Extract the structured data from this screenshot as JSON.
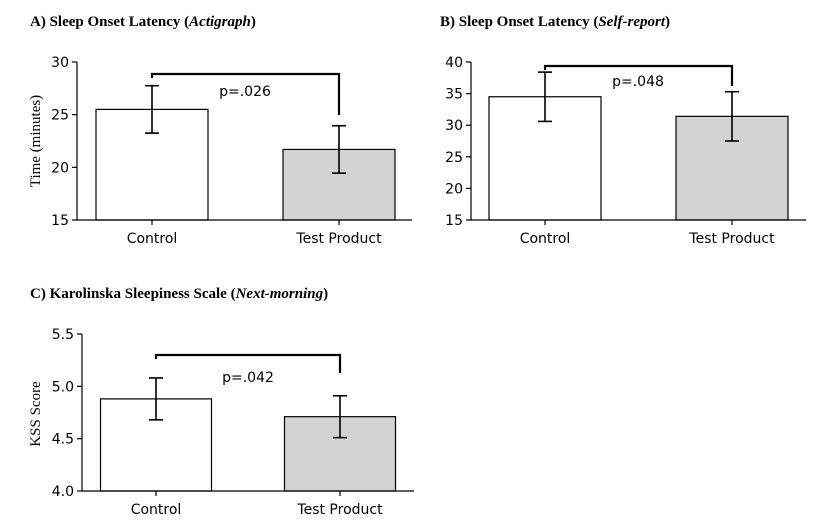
{
  "chart_data": [
    {
      "type": "bar",
      "title_prefix": "A) Sleep Onset Latency (",
      "title_italic": "Actigraph",
      "title_suffix": ")",
      "ylabel": "Time (minutes)",
      "categories": [
        "Control",
        "Test Product"
      ],
      "values": [
        25.5,
        21.7
      ],
      "errors": [
        2.25,
        2.25
      ],
      "bar_colors": [
        "#ffffff",
        "#d3d3d3"
      ],
      "ylim": [
        15,
        30
      ],
      "yticks": [
        "15",
        "20",
        "25",
        "30"
      ],
      "ytick_values": [
        15,
        20,
        25,
        30
      ],
      "significance": "p=.026"
    },
    {
      "type": "bar",
      "title_prefix": "B) Sleep Onset Latency (",
      "title_italic": "Self-report",
      "title_suffix": ")",
      "ylabel": "",
      "categories": [
        "Control",
        "Test Product"
      ],
      "values": [
        34.5,
        31.4
      ],
      "errors": [
        3.9,
        3.9
      ],
      "bar_colors": [
        "#ffffff",
        "#d3d3d3"
      ],
      "ylim": [
        15,
        40
      ],
      "yticks": [
        "15",
        "20",
        "25",
        "30",
        "35",
        "40"
      ],
      "ytick_values": [
        15,
        20,
        25,
        30,
        35,
        40
      ],
      "significance": "p=.048"
    },
    {
      "type": "bar",
      "title_prefix": "C) Karolinska Sleepiness Scale (",
      "title_italic": "Next-morning",
      "title_suffix": ")",
      "ylabel": "KSS Score",
      "categories": [
        "Control",
        "Test Product"
      ],
      "values": [
        4.88,
        4.71
      ],
      "errors": [
        0.2,
        0.2
      ],
      "bar_colors": [
        "#ffffff",
        "#d3d3d3"
      ],
      "ylim": [
        4.0,
        5.5
      ],
      "yticks": [
        "4.0",
        "4.5",
        "5.0",
        "5.5"
      ],
      "ytick_values": [
        4.0,
        4.5,
        5.0,
        5.5
      ],
      "significance": "p=.042"
    }
  ]
}
